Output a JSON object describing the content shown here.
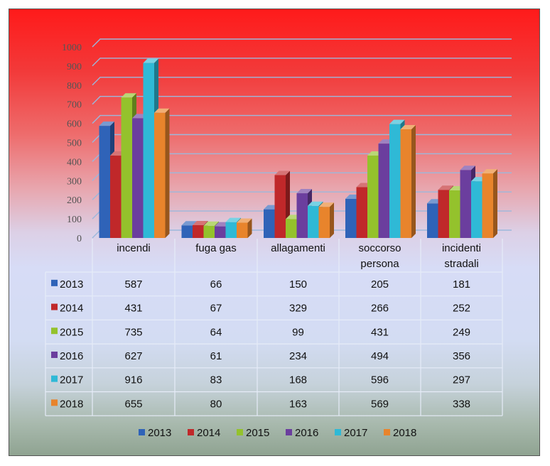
{
  "chart_data": {
    "type": "bar",
    "categories": [
      "incendi",
      "fuga gas",
      "allagamenti",
      "soccorso persona",
      "incidenti stradali"
    ],
    "category_lines": [
      [
        "incendi"
      ],
      [
        "fuga gas"
      ],
      [
        "allagamenti"
      ],
      [
        "soccorso",
        "persona"
      ],
      [
        "incidenti",
        "stradali"
      ]
    ],
    "series": [
      {
        "name": "2013",
        "values": [
          587,
          66,
          150,
          205,
          181
        ],
        "color": "#2f63b8"
      },
      {
        "name": "2014",
        "values": [
          431,
          67,
          329,
          266,
          252
        ],
        "color": "#c0282a"
      },
      {
        "name": "2015",
        "values": [
          735,
          64,
          99,
          431,
          249
        ],
        "color": "#94c22c"
      },
      {
        "name": "2016",
        "values": [
          627,
          61,
          234,
          494,
          356
        ],
        "color": "#6b3e9e"
      },
      {
        "name": "2017",
        "values": [
          916,
          83,
          168,
          596,
          297
        ],
        "color": "#2fb9d6"
      },
      {
        "name": "2018",
        "values": [
          655,
          80,
          163,
          569,
          338
        ],
        "color": "#e8842c"
      }
    ],
    "ylim": [
      0,
      1000
    ],
    "yticks": [
      0,
      100,
      200,
      300,
      400,
      500,
      600,
      700,
      800,
      900,
      1000
    ],
    "grid": true,
    "legend": "bottom",
    "data_table": true
  }
}
